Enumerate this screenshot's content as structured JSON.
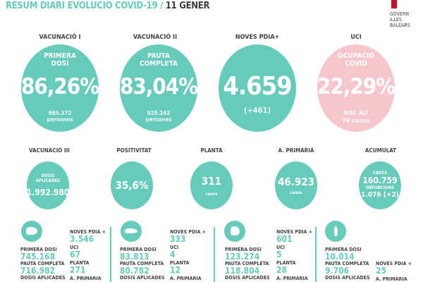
{
  "header": {
    "title": "RESUM DIARI EVOLUCIO COVID-19 /",
    "date": "11 GENER",
    "logo": [
      "GOVERN",
      "ILLES",
      "BALEARS"
    ]
  },
  "main": [
    {
      "heading": "VACUNACIÓ I",
      "label": "PRIMERA DOSI",
      "value": "86,26%",
      "sub": "965.372",
      "sub2": "persones"
    },
    {
      "heading": "VACUNACIÓ II",
      "label": "PAUTA COMPLETA",
      "value": "83,04%",
      "sub": "929.242",
      "sub2": "persones"
    },
    {
      "heading": "NOVES PDIA+",
      "label": "",
      "value": "4.659",
      "sub": "(+461)",
      "sub2": ""
    },
    {
      "heading": "UCI",
      "label": "OCUPACIÓ COVID",
      "value": "22,29%",
      "sub": "RISC ALT",
      "sub2": "76 casos"
    }
  ],
  "secondary": [
    {
      "heading": "VACUNACIÓ III",
      "top": "DOSIS APLICADES",
      "value": "1.992.980",
      "bottom": ""
    },
    {
      "heading": "POSITIVITAT",
      "top": "",
      "value": "35,6%",
      "bottom": ""
    },
    {
      "heading": "PLANTA",
      "top": "",
      "value": "311",
      "bottom": "casos"
    },
    {
      "heading": "A. PRIMÀRIA",
      "top": "",
      "value": "46.923",
      "bottom": "casos"
    },
    {
      "heading": "ACUMULAT",
      "top": "CASOS",
      "value": "160.759",
      "label2": "DEFUNCIONS",
      "value2": "1.076 (+2)"
    }
  ],
  "islands": [
    {
      "icon": "mallorca-icon",
      "primera_label": "PRIMERA DOSI",
      "primera": "745.168",
      "pauta_label": "PAUTA COMPLETA",
      "pauta": "716.982",
      "dosis_label": "DOSIS APLICADES",
      "pdia_label": "NOVES PDIA +",
      "pdia": "3.546",
      "uci_label": "UCI",
      "uci": "67",
      "planta_label": "PLANTA",
      "planta": "271",
      "ap_label": "A. PRIMÀRIA"
    },
    {
      "icon": "menorca-icon",
      "primera_label": "PRIMERA DOSI",
      "primera": "83.813",
      "pauta_label": "PAUTA COMPLETA",
      "pauta": "80.782",
      "dosis_label": "DOSIS APLICADES",
      "pdia_label": "NOVES PDIA +",
      "pdia": "333",
      "uci_label": "UCI",
      "uci": "4",
      "planta_label": "PLANTA",
      "planta": "12",
      "ap_label": "A. PRIMÀRIA"
    },
    {
      "icon": "eivissa-icon",
      "primera_label": "PRIMERA DOSI",
      "primera": "123.274",
      "pauta_label": "PAUTA COMPLETA",
      "pauta": "118.804",
      "dosis_label": "DOSIS APLICADES",
      "pdia_label": "NOVES PDIA +",
      "pdia": "601",
      "uci_label": "UCI",
      "uci": "5",
      "planta_label": "PLANTA",
      "planta": "28",
      "ap_label": "A. PRIMÀRIA"
    },
    {
      "icon": "formentera-icon",
      "primera_label": "PRIMERA DOSI",
      "primera": "10.014",
      "pauta_label": "PAUTA COMPLETA",
      "pauta": "9.706",
      "dosis_label": "DOSIS APLICADES",
      "pdia_label": "NOVES PDIA +",
      "pdia": "25",
      "ap_label": "A. PRIMÀRIA"
    }
  ]
}
